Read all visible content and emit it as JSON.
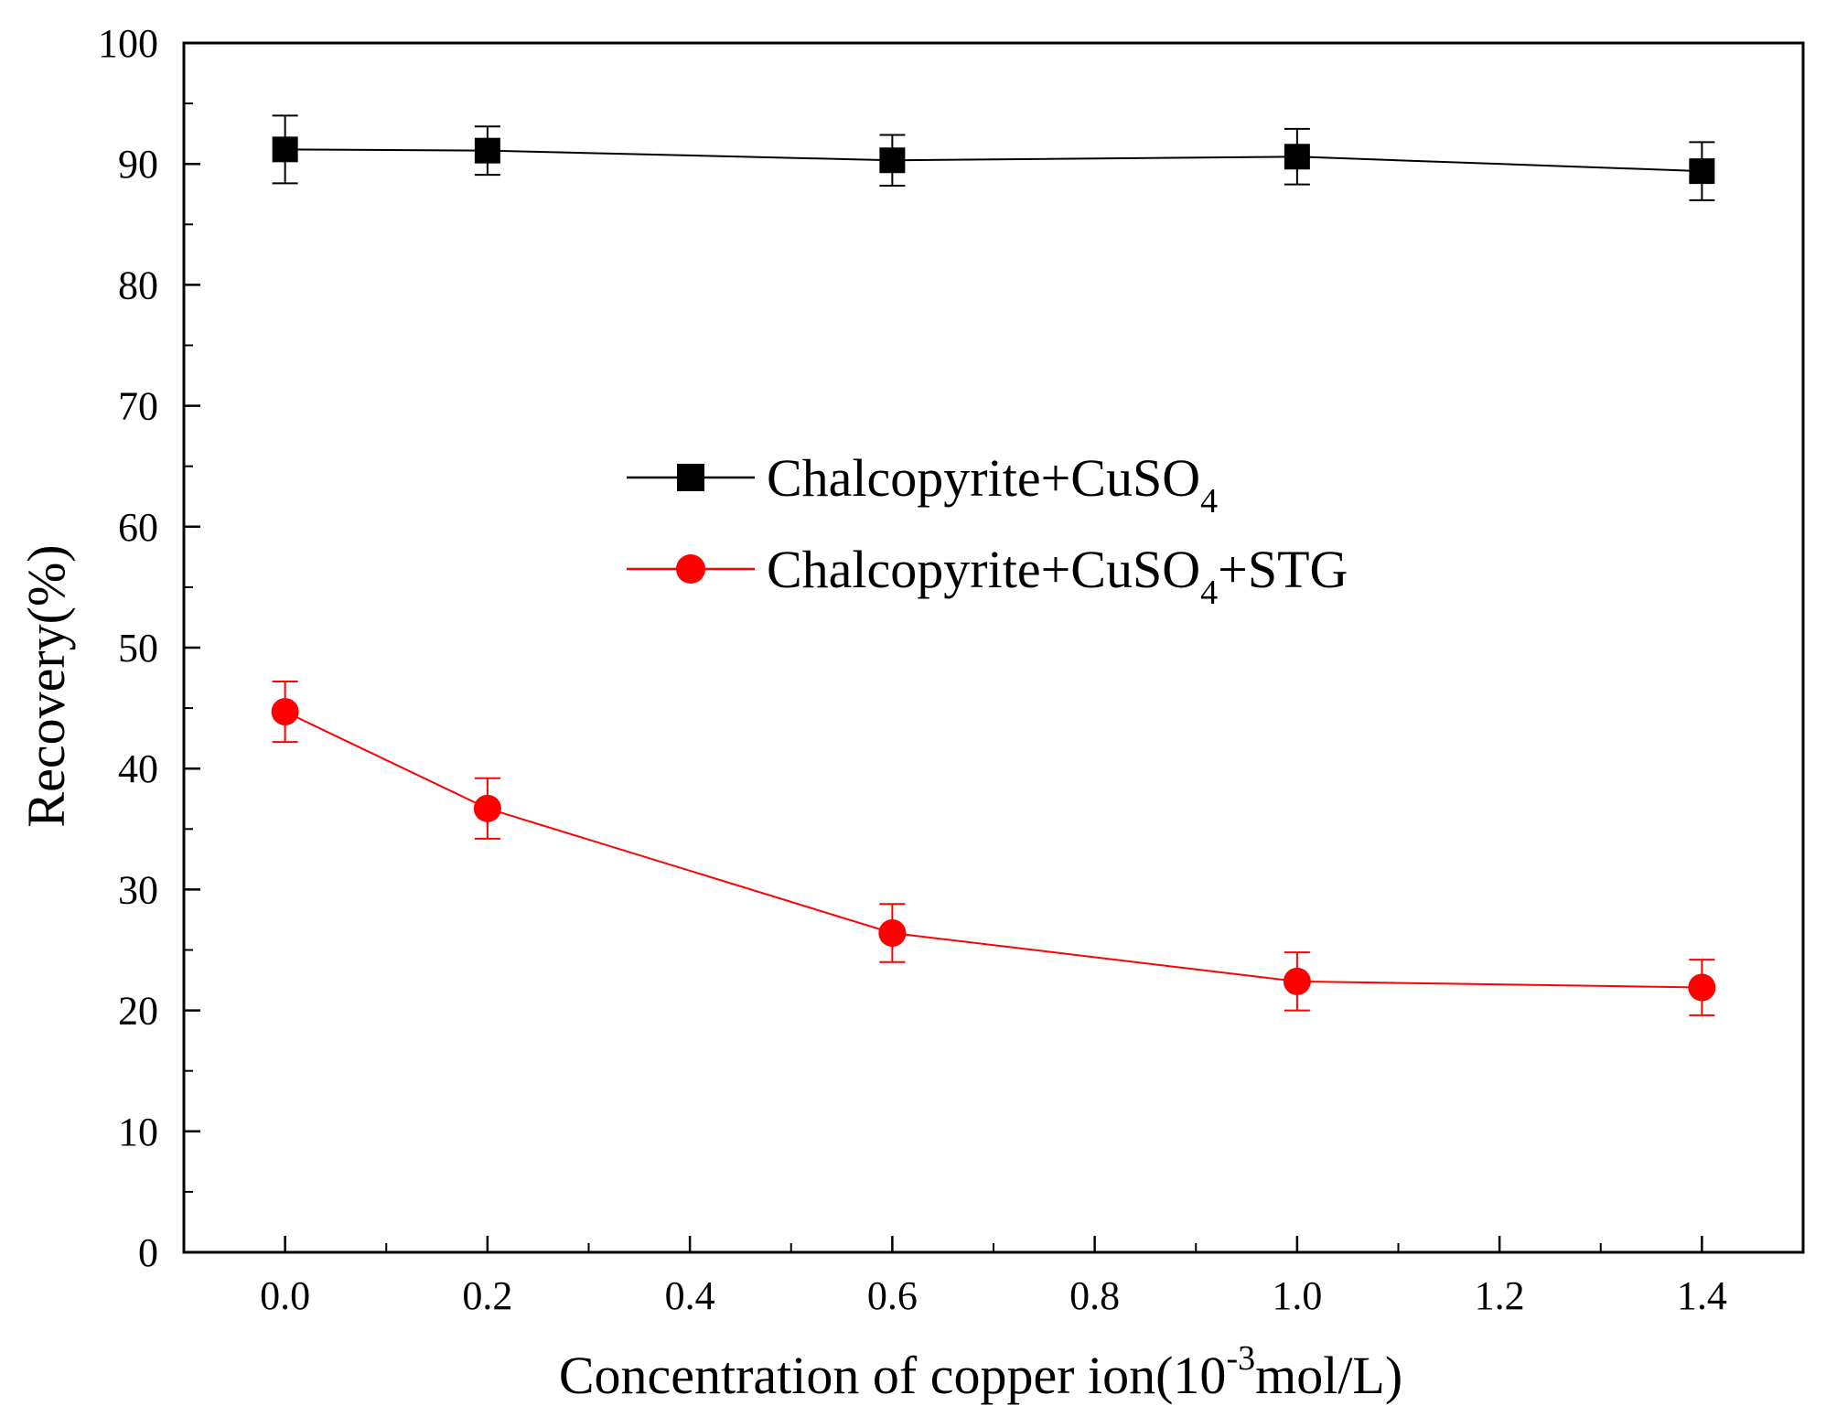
{
  "chart_data": {
    "type": "line",
    "title": "",
    "xlabel_main": "Concentration of copper ion(10",
    "xlabel_sup": "-3",
    "xlabel_unit": "mol/L)",
    "ylabel": "Recovery(%)",
    "xlim": [
      -0.1,
      1.5
    ],
    "ylim": [
      0,
      100
    ],
    "x_ticks": [
      "0.0",
      "0.2",
      "0.4",
      "0.6",
      "0.8",
      "1.0",
      "1.2",
      "1.4"
    ],
    "y_ticks": [
      "0",
      "10",
      "20",
      "30",
      "40",
      "50",
      "60",
      "70",
      "80",
      "90",
      "100"
    ],
    "legend_position": "center",
    "series": [
      {
        "name_main": "Chalcopyrite+CuSO",
        "name_sub": "4",
        "name_tail": "",
        "color": "#000000",
        "marker": "square",
        "x": [
          0.0,
          0.2,
          0.6,
          1.0,
          1.4
        ],
        "y": [
          91.2,
          91.1,
          90.3,
          90.6,
          89.4
        ],
        "err": [
          2.8,
          2.0,
          2.1,
          2.3,
          2.4
        ]
      },
      {
        "name_main": "Chalcopyrite+CuSO",
        "name_sub": "4",
        "name_tail": "+STG",
        "color": "#ff0000",
        "marker": "circle",
        "x": [
          0.0,
          0.2,
          0.6,
          1.0,
          1.4
        ],
        "y": [
          44.7,
          36.7,
          26.4,
          22.4,
          21.9
        ],
        "err": [
          2.5,
          2.5,
          2.4,
          2.4,
          2.3
        ]
      }
    ]
  }
}
